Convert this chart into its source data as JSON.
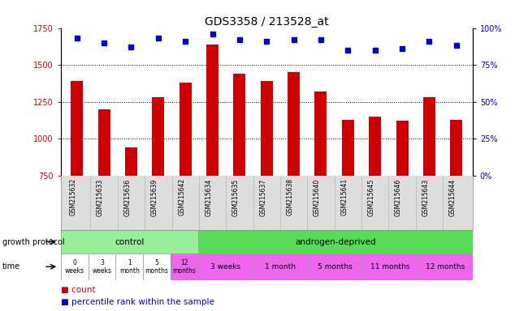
{
  "title": "GDS3358 / 213528_at",
  "samples": [
    "GSM215632",
    "GSM215633",
    "GSM215636",
    "GSM215639",
    "GSM215642",
    "GSM215634",
    "GSM215635",
    "GSM215637",
    "GSM215638",
    "GSM215640",
    "GSM215641",
    "GSM215645",
    "GSM215646",
    "GSM215643",
    "GSM215644"
  ],
  "counts": [
    1390,
    1200,
    940,
    1280,
    1380,
    1640,
    1440,
    1390,
    1450,
    1320,
    1130,
    1150,
    1120,
    1280,
    1130
  ],
  "percentiles": [
    93,
    90,
    87,
    93,
    91,
    96,
    92,
    91,
    92,
    92,
    85,
    85,
    86,
    91,
    88
  ],
  "ylim_left": [
    750,
    1750
  ],
  "ylim_right": [
    0,
    100
  ],
  "yticks_left": [
    750,
    1000,
    1250,
    1500,
    1750
  ],
  "yticks_right": [
    0,
    25,
    50,
    75,
    100
  ],
  "bar_color": "#cc0000",
  "dot_color": "#0000cc",
  "bg_color": "#ffffff",
  "plot_bg": "#ffffff",
  "protocol_row": {
    "control_label": "control",
    "androgen_label": "androgen-deprived",
    "control_color": "#99ee99",
    "androgen_color": "#55dd55",
    "row_label": "growth protocol",
    "control_count": 5,
    "androgen_count": 10
  },
  "time_row": {
    "row_label": "time",
    "control_times": [
      "0\nweeks",
      "3\nweeks",
      "1\nmonth",
      "5\nmonths",
      "12\nmonths"
    ],
    "androgen_times": [
      "3 weeks",
      "1 month",
      "5 months",
      "11 months",
      "12 months"
    ],
    "ctrl_box_colors": [
      "#ffffff",
      "#ffffff",
      "#ffffff",
      "#ffffff",
      "#ee66ee"
    ],
    "androgen_box_color": "#ee66ee",
    "androgen_sample_counts": [
      2,
      2,
      2,
      2,
      2
    ]
  },
  "legend_count_label": "count",
  "legend_pct_label": "percentile rank within the sample",
  "sample_label_bg": "#dddddd",
  "gridline_values": [
    1000,
    1250,
    1500
  ]
}
